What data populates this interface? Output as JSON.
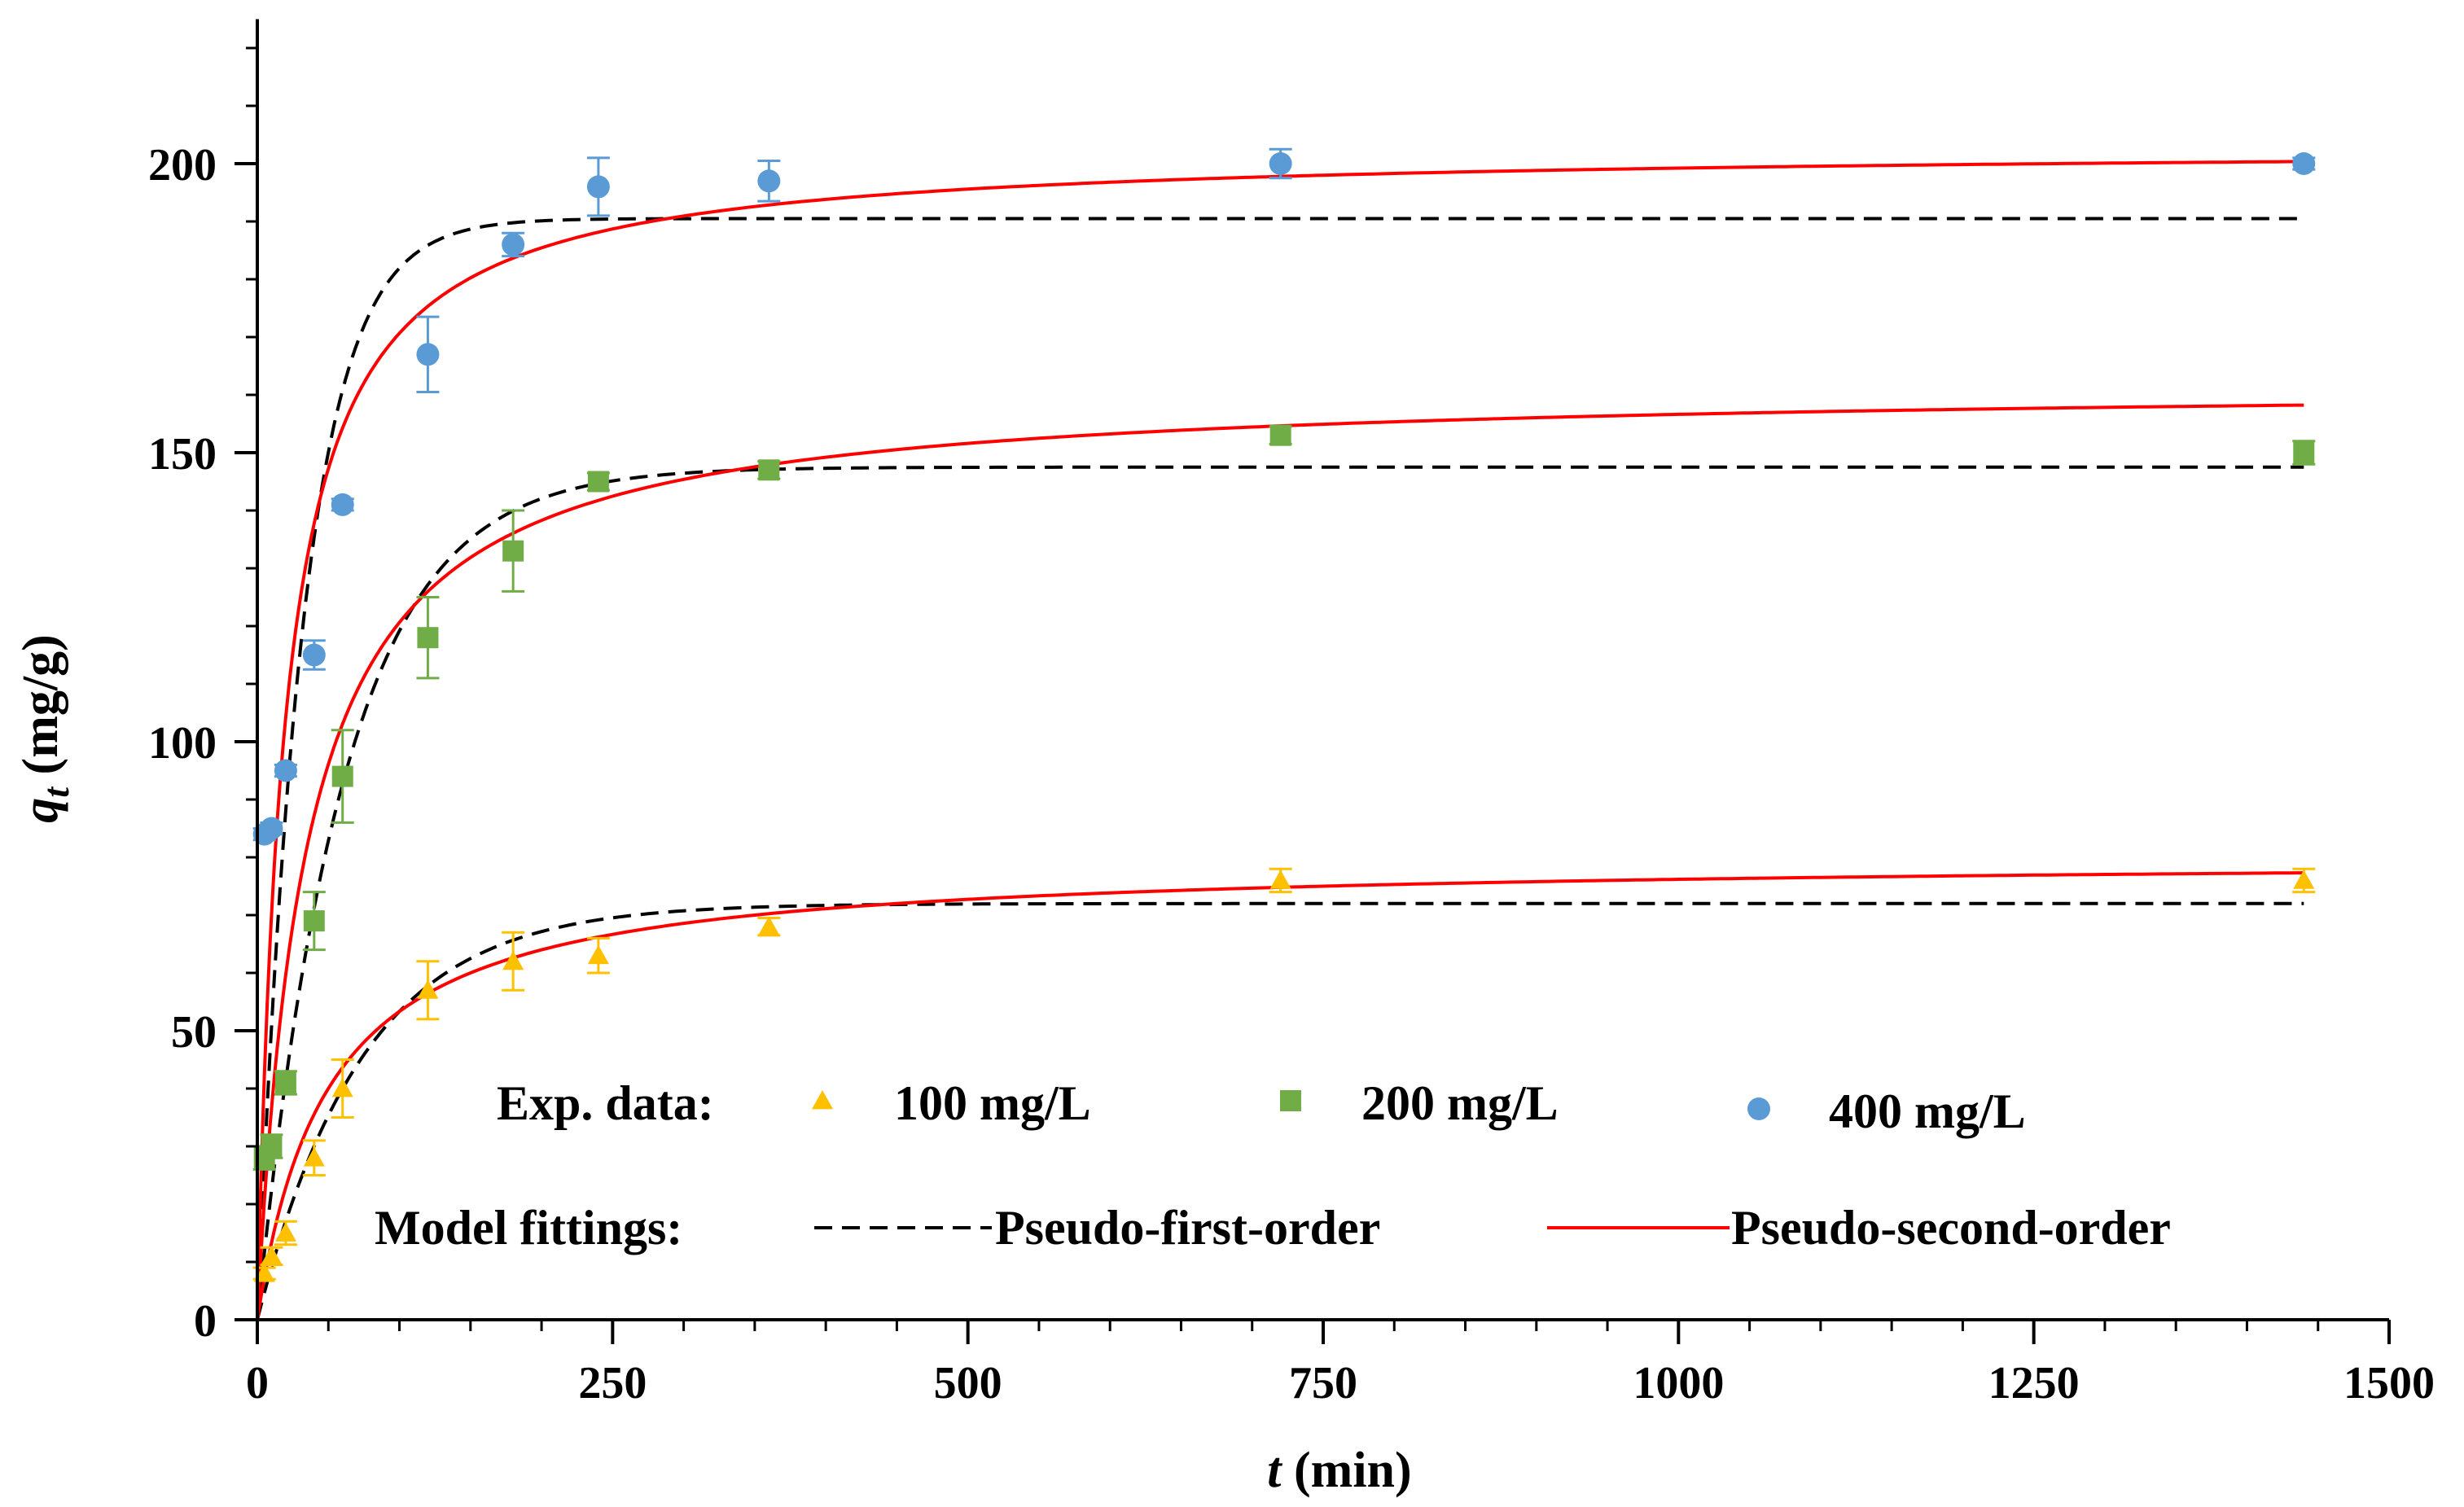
{
  "chart_data": {
    "type": "scatter",
    "xlabel": {
      "var": "t",
      "unit": " (min)"
    },
    "ylabel": {
      "var": "q",
      "sub": "t",
      "unit": " (mg/g)"
    },
    "xlim": [
      0,
      1500
    ],
    "ylim": [
      0,
      225
    ],
    "x_ticks": [
      0,
      250,
      500,
      750,
      1000,
      1250,
      1500
    ],
    "y_ticks": [
      0,
      50,
      100,
      150,
      200
    ],
    "x_minor_step": 50,
    "y_minor_step": 10,
    "grid": false,
    "legend": {
      "exp_label": "Exp. data:",
      "model_label": "Model fittings:",
      "placement": "bottom-center"
    },
    "series": [
      {
        "name": "100 mg/L",
        "marker": "triangle",
        "color": "#FFC000",
        "x": [
          5,
          10,
          20,
          40,
          60,
          120,
          180,
          240,
          360,
          720,
          1440
        ],
        "y": [
          8,
          11,
          15,
          28,
          40,
          57,
          62,
          63,
          68,
          76,
          76
        ],
        "err": [
          1,
          1.5,
          2,
          3,
          5,
          5,
          5,
          3,
          1.5,
          2,
          2
        ]
      },
      {
        "name": "200 mg/L",
        "marker": "square",
        "color": "#70AD47",
        "x": [
          5,
          10,
          20,
          40,
          60,
          120,
          180,
          240,
          360,
          720,
          1440
        ],
        "y": [
          28,
          30,
          41,
          69,
          94,
          118,
          133,
          145,
          147,
          153,
          150
        ],
        "err": [
          2,
          2,
          2,
          5,
          8,
          7,
          7,
          1.5,
          1.5,
          1.5,
          2
        ]
      },
      {
        "name": "400 mg/L",
        "marker": "circle",
        "color": "#5B9BD5",
        "x": [
          5,
          10,
          20,
          40,
          60,
          120,
          180,
          240,
          360,
          720,
          1440
        ],
        "y": [
          84,
          85,
          95,
          115,
          141,
          167,
          186,
          196,
          197,
          200,
          200
        ],
        "err": [
          1,
          1,
          1,
          2.5,
          1,
          6.5,
          2,
          5,
          3.5,
          2.5,
          1
        ]
      }
    ],
    "models": [
      {
        "name": "Pseudo-first-order",
        "style": "dashed",
        "color": "#000000",
        "curves": [
          {
            "series": "100 mg/L",
            "qe": 72,
            "k": 0.0135
          },
          {
            "series": "200 mg/L",
            "qe": 147.5,
            "k": 0.0165
          },
          {
            "series": "400 mg/L",
            "qe": 190.5,
            "k": 0.031
          }
        ]
      },
      {
        "name": "Pseudo-second-order",
        "style": "solid",
        "color": "#FF0000",
        "curves": [
          {
            "series": "100 mg/L",
            "qe": 80,
            "k": 0.00025
          },
          {
            "series": "200 mg/L",
            "qe": 162,
            "k": 0.00018
          },
          {
            "series": "400 mg/L",
            "qe": 203,
            "k": 0.00026
          }
        ]
      }
    ]
  }
}
